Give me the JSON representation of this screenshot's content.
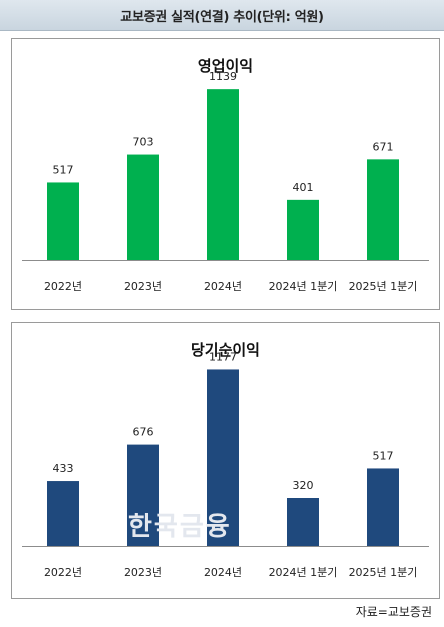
{
  "banner_title": "교보증권 실적(연결) 추이(단위: 억원)",
  "source": "자료=교보증권",
  "watermark": "한국금융",
  "chart_data": [
    {
      "type": "bar",
      "title": "영업이익",
      "categories": [
        "2022년",
        "2023년",
        "2024년",
        "2024년 1분기",
        "2025년 1분기"
      ],
      "values": [
        517,
        703,
        1139,
        401,
        671
      ],
      "color": "#00b04f",
      "ylim": [
        0,
        1300
      ],
      "grid": false,
      "legend": "none"
    },
    {
      "type": "bar",
      "title": "당기순이익",
      "categories": [
        "2022년",
        "2023년",
        "2024년",
        "2024년 1분기",
        "2025년 1분기"
      ],
      "values": [
        433,
        676,
        1177,
        320,
        517
      ],
      "color": "#1f497d",
      "ylim": [
        0,
        1300
      ],
      "grid": false,
      "legend": "none"
    }
  ]
}
